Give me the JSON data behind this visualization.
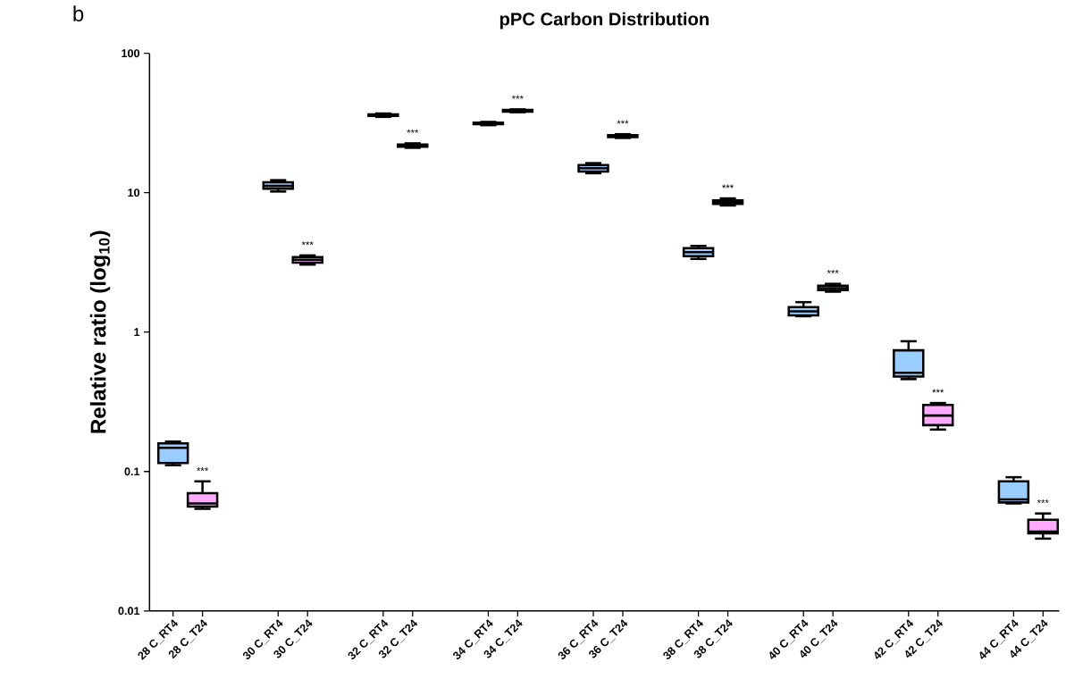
{
  "chart_data": {
    "type": "box",
    "title": "pPC Carbon Distribution",
    "ylabel": "Relative ratio (log$_{10}$)",
    "categories": [
      "28 C_RT4",
      "28 C_T24",
      "30 C_RT4",
      "30 C_T24",
      "32 C_RT4",
      "32 C_T24",
      "34 C_RT4",
      "34 C_T24",
      "36 C_RT4",
      "36 C_T24",
      "38 C_RT4",
      "38 C_T24",
      "40 C_RT4",
      "40 C_T24",
      "42 C_RT4",
      "42 C_T24",
      "44 C_RT4",
      "44 C_T24"
    ],
    "colors": [
      "#99ccff",
      "#ffaaff",
      "#99ccff",
      "#ffaaff",
      "#99ccff",
      "#ffaaff",
      "#99ccff",
      "#ffaaff",
      "#99ccff",
      "#ffaaff",
      "#99ccff",
      "#ffaaff",
      "#99ccff",
      "#ffaaff",
      "#99ccff",
      "#ffaaff",
      "#99ccff",
      "#ffaaff"
    ],
    "boxes": [
      {
        "low": 0.111,
        "q1": 0.115,
        "median": 0.148,
        "q3": 0.159,
        "high": 0.164
      },
      {
        "low": 0.054,
        "q1": 0.056,
        "median": 0.059,
        "q3": 0.07,
        "high": 0.085
      },
      {
        "low": 10.2,
        "q1": 10.7,
        "median": 11.2,
        "q3": 11.9,
        "high": 12.3
      },
      {
        "low": 3.05,
        "q1": 3.15,
        "median": 3.3,
        "q3": 3.45,
        "high": 3.55
      },
      {
        "low": 35,
        "q1": 35.5,
        "median": 36,
        "q3": 36.5,
        "high": 37
      },
      {
        "low": 21,
        "q1": 21.4,
        "median": 21.8,
        "q3": 22.2,
        "high": 22.6
      },
      {
        "low": 30.5,
        "q1": 31,
        "median": 31.4,
        "q3": 31.8,
        "high": 32.2
      },
      {
        "low": 37.8,
        "q1": 38.2,
        "median": 38.7,
        "q3": 39.2,
        "high": 39.6
      },
      {
        "low": 13.8,
        "q1": 14.2,
        "median": 15,
        "q3": 15.8,
        "high": 16.3
      },
      {
        "low": 24.7,
        "q1": 25,
        "median": 25.4,
        "q3": 25.9,
        "high": 26.3
      },
      {
        "low": 3.35,
        "q1": 3.5,
        "median": 3.75,
        "q3": 4,
        "high": 4.15
      },
      {
        "low": 8.1,
        "q1": 8.3,
        "median": 8.55,
        "q3": 8.8,
        "high": 9.1
      },
      {
        "low": 1.3,
        "q1": 1.32,
        "median": 1.41,
        "q3": 1.51,
        "high": 1.64
      },
      {
        "low": 1.95,
        "q1": 2,
        "median": 2.07,
        "q3": 2.15,
        "high": 2.22
      },
      {
        "low": 0.46,
        "q1": 0.48,
        "median": 0.51,
        "q3": 0.74,
        "high": 0.86
      },
      {
        "low": 0.2,
        "q1": 0.215,
        "median": 0.252,
        "q3": 0.3,
        "high": 0.31
      },
      {
        "low": 0.059,
        "q1": 0.06,
        "median": 0.063,
        "q3": 0.085,
        "high": 0.091
      },
      {
        "low": 0.033,
        "q1": 0.036,
        "median": 0.037,
        "q3": 0.045,
        "high": 0.05
      }
    ],
    "log": "y",
    "ylim": [
      0.01,
      100
    ],
    "yticks": [
      0.01,
      0.1,
      1,
      10,
      100
    ],
    "annotations": [
      "b",
      {
        "text": "***",
        "x": "28 C_T24",
        "y": 0.085
      },
      {
        "text": "***",
        "x": "30 C_T24",
        "y": 3.55
      },
      {
        "text": "***",
        "x": "32 C_T24",
        "y": 22.6
      },
      {
        "text": "***",
        "x": "34 C_T24",
        "y": 39.6
      },
      {
        "text": "***",
        "x": "36 C_T24",
        "y": 26.3
      },
      {
        "text": "***",
        "x": "38 C_T24",
        "y": 9.1
      },
      {
        "text": "***",
        "x": "40 C_T24",
        "y": 2.22
      },
      {
        "text": "***",
        "x": "42 C_T24",
        "y": 0.31
      },
      {
        "text": "***",
        "x": "44 C_T24",
        "y": 0.05
      }
    ]
  }
}
